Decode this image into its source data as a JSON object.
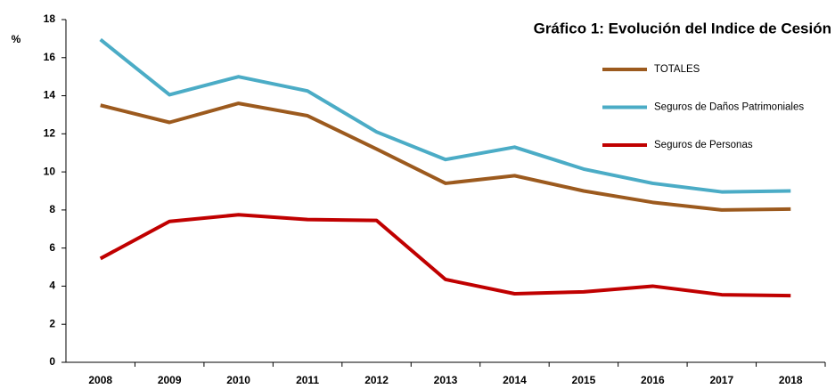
{
  "chart_data": {
    "type": "line",
    "title": "Gráfico 1: Evolución del Indice de Cesión",
    "y_label": "%",
    "categories": [
      "2008",
      "2009",
      "2010",
      "2011",
      "2012",
      "2013",
      "2014",
      "2015",
      "2016",
      "2017",
      "2018"
    ],
    "series": [
      {
        "name": "TOTALES",
        "color": "#9c5a1e",
        "values": [
          13.5,
          12.6,
          13.6,
          12.95,
          11.2,
          9.4,
          9.8,
          9.0,
          8.4,
          8.0,
          8.05
        ]
      },
      {
        "name": "Seguros de Daños Patrimoniales",
        "color": "#4bacc6",
        "values": [
          16.95,
          14.05,
          15.0,
          14.25,
          12.1,
          10.65,
          11.3,
          10.15,
          9.4,
          8.95,
          9.0
        ]
      },
      {
        "name": "Seguros de Personas",
        "color": "#c00000",
        "values": [
          5.45,
          7.4,
          7.75,
          7.5,
          7.45,
          4.35,
          3.6,
          3.7,
          4.0,
          3.55,
          3.5
        ]
      }
    ],
    "ylim": [
      0,
      18
    ],
    "yticks": [
      0,
      2,
      4,
      6,
      8,
      10,
      12,
      14,
      16,
      18
    ],
    "grid": false
  }
}
